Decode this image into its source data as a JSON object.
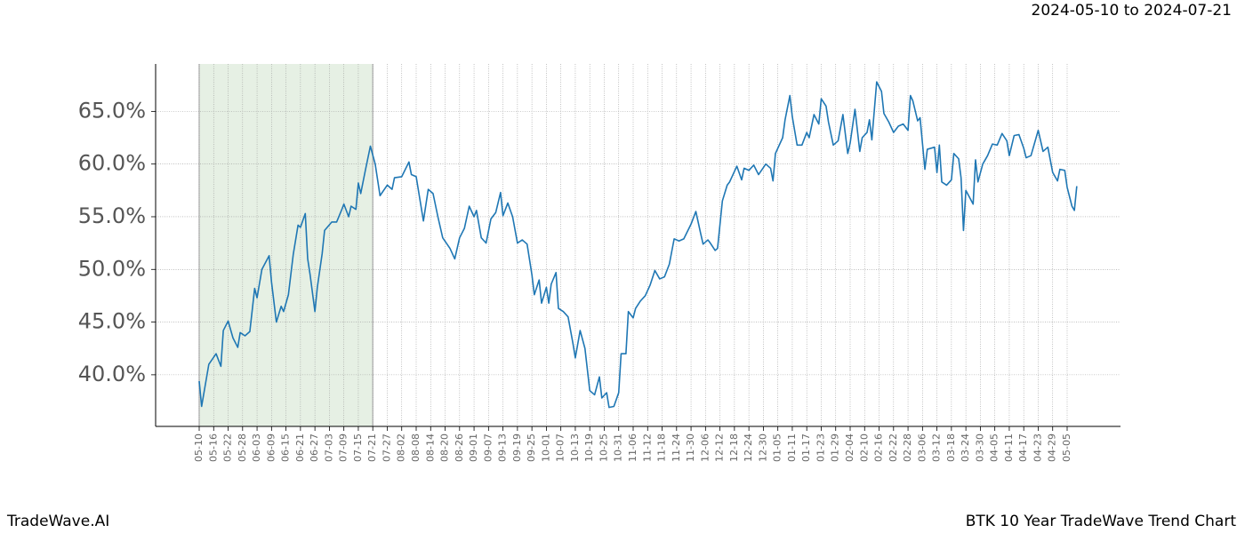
{
  "chart_data": {
    "type": "line",
    "header_text": "2024-05-10 to 2024-07-21",
    "footer_left": "TradeWave.AI",
    "footer_right": "BTK 10 Year TradeWave Trend Chart",
    "color": "#1f77b4",
    "grid": true,
    "shade": {
      "from": "05-10",
      "to": "07-21",
      "color": "#e6f0e4"
    },
    "ylim": [
      35.1,
      69.5
    ],
    "yticks": [
      {
        "value": 40,
        "label": "40.0%"
      },
      {
        "value": 45,
        "label": "45.0%"
      },
      {
        "value": 50,
        "label": "50.0%"
      },
      {
        "value": 55,
        "label": "55.0%"
      },
      {
        "value": 60,
        "label": "60.0%"
      },
      {
        "value": 65,
        "label": "65.0%"
      }
    ],
    "xticks": [
      "05-10",
      "05-16",
      "05-22",
      "05-28",
      "06-03",
      "06-09",
      "06-15",
      "06-21",
      "06-27",
      "07-03",
      "07-09",
      "07-15",
      "07-21",
      "07-27",
      "08-02",
      "08-08",
      "08-14",
      "08-20",
      "08-26",
      "09-01",
      "09-07",
      "09-13",
      "09-19",
      "09-25",
      "10-01",
      "10-07",
      "10-13",
      "10-19",
      "10-25",
      "10-31",
      "11-06",
      "11-12",
      "11-18",
      "11-24",
      "11-30",
      "12-06",
      "12-12",
      "12-18",
      "12-24",
      "12-30",
      "01-05",
      "01-11",
      "01-17",
      "01-23",
      "01-29",
      "02-04",
      "02-10",
      "02-16",
      "02-22",
      "02-28",
      "03-06",
      "03-12",
      "03-18",
      "03-24",
      "03-30",
      "04-05",
      "04-11",
      "04-17",
      "04-23",
      "04-29",
      "05-05"
    ],
    "x": [
      "05-10",
      "05-11",
      "05-14",
      "05-17",
      "05-19",
      "05-20",
      "05-22",
      "05-24",
      "05-26",
      "05-27",
      "05-29",
      "05-31",
      "06-02",
      "06-03",
      "06-05",
      "06-08",
      "06-09",
      "06-11",
      "06-13",
      "06-14",
      "06-16",
      "06-18",
      "06-20",
      "06-21",
      "06-23",
      "06-24",
      "06-25",
      "06-27",
      "06-28",
      "06-30",
      "07-01",
      "07-04",
      "07-06",
      "07-08",
      "07-09",
      "07-11",
      "07-12",
      "07-14",
      "07-15",
      "07-16",
      "07-18",
      "07-20",
      "07-22",
      "07-24",
      "07-27",
      "07-29",
      "07-30",
      "08-02",
      "08-05",
      "08-06",
      "08-08",
      "08-11",
      "08-13",
      "08-15",
      "08-17",
      "08-19",
      "08-22",
      "08-24",
      "08-26",
      "08-28",
      "08-30",
      "09-01",
      "09-02",
      "09-04",
      "09-06",
      "09-08",
      "09-10",
      "09-12",
      "09-13",
      "09-15",
      "09-17",
      "09-19",
      "09-21",
      "09-23",
      "09-25",
      "09-26",
      "09-28",
      "09-29",
      "10-01",
      "10-02",
      "10-03",
      "10-05",
      "10-06",
      "10-08",
      "10-10",
      "10-12",
      "10-13",
      "10-15",
      "10-17",
      "10-19",
      "10-21",
      "10-23",
      "10-24",
      "10-26",
      "10-27",
      "10-29",
      "10-31",
      "11-01",
      "11-03",
      "11-04",
      "11-06",
      "11-07",
      "11-09",
      "11-11",
      "11-13",
      "11-15",
      "11-17",
      "11-19",
      "11-21",
      "11-23",
      "11-25",
      "11-27",
      "11-30",
      "12-02",
      "12-04",
      "12-05",
      "12-07",
      "12-08",
      "12-10",
      "12-11",
      "12-13",
      "12-15",
      "12-16",
      "12-19",
      "12-21",
      "12-22",
      "12-24",
      "12-26",
      "12-28",
      "12-31",
      "01-02",
      "01-03",
      "01-04",
      "01-07",
      "01-08",
      "01-10",
      "01-11",
      "01-13",
      "01-15",
      "01-17",
      "01-18",
      "01-20",
      "01-22",
      "01-23",
      "01-25",
      "01-26",
      "01-28",
      "01-30",
      "02-01",
      "02-03",
      "02-04",
      "02-06",
      "02-08",
      "02-09",
      "02-11",
      "02-12",
      "02-13",
      "02-15",
      "02-17",
      "02-18",
      "02-20",
      "02-22",
      "02-24",
      "02-26",
      "02-28",
      "03-01",
      "03-02",
      "03-04",
      "03-05",
      "03-07",
      "03-08",
      "03-11",
      "03-12",
      "03-13",
      "03-14",
      "03-16",
      "03-18",
      "03-19",
      "03-21",
      "03-22",
      "03-23",
      "03-24",
      "03-27",
      "03-28",
      "03-29",
      "03-31",
      "04-02",
      "04-04",
      "04-06",
      "04-08",
      "04-10",
      "04-11",
      "04-13",
      "04-15",
      "04-17",
      "04-18",
      "04-20",
      "04-23",
      "04-25",
      "04-27",
      "04-29",
      "05-01",
      "05-02",
      "05-04",
      "05-05",
      "05-07",
      "05-08",
      "05-09"
    ],
    "values": [
      39.4,
      37.0,
      41.0,
      42.0,
      40.8,
      44.2,
      45.1,
      43.5,
      42.6,
      44.0,
      43.7,
      44.1,
      48.2,
      47.3,
      50.0,
      51.3,
      48.8,
      45.0,
      46.5,
      46.0,
      47.6,
      51.4,
      54.2,
      54.0,
      55.3,
      51.0,
      49.5,
      46.0,
      48.3,
      51.5,
      53.7,
      54.5,
      54.5,
      55.6,
      56.2,
      55.0,
      56.0,
      55.7,
      58.2,
      57.2,
      59.5,
      61.7,
      60.0,
      57.0,
      58.0,
      57.6,
      58.7,
      58.8,
      60.2,
      59.0,
      58.8,
      54.6,
      57.6,
      57.2,
      55.0,
      53.0,
      52.0,
      51.0,
      53.0,
      53.9,
      56.0,
      55.0,
      55.6,
      53.0,
      52.5,
      54.8,
      55.4,
      57.3,
      55.1,
      56.3,
      55.0,
      52.5,
      52.8,
      52.4,
      49.5,
      47.6,
      49.0,
      46.8,
      48.3,
      46.8,
      48.6,
      49.7,
      46.3,
      46.0,
      45.5,
      43.0,
      41.6,
      44.2,
      42.5,
      38.5,
      38.1,
      39.8,
      37.8,
      38.3,
      36.9,
      37.0,
      38.3,
      42.0,
      42.0,
      46.0,
      45.4,
      46.3,
      47.0,
      47.5,
      48.5,
      49.9,
      49.1,
      49.3,
      50.5,
      52.9,
      52.7,
      52.9,
      54.3,
      55.5,
      53.4,
      52.4,
      52.8,
      52.5,
      51.8,
      52.0,
      56.5,
      58.0,
      58.3,
      59.8,
      58.5,
      59.6,
      59.4,
      59.9,
      59.0,
      60.0,
      59.6,
      58.4,
      61.0,
      62.5,
      64.2,
      66.5,
      64.5,
      61.8,
      61.8,
      63.0,
      62.5,
      64.7,
      63.8,
      66.2,
      65.5,
      64.0,
      61.8,
      62.2,
      64.7,
      61.0,
      62.0,
      65.2,
      61.2,
      62.5,
      63.0,
      64.2,
      62.3,
      67.8,
      66.9,
      64.8,
      64.0,
      63.0,
      63.6,
      63.8,
      63.2,
      66.5,
      66.0,
      64.1,
      64.4,
      59.5,
      61.4,
      61.6,
      59.2,
      61.8,
      58.3,
      58.0,
      58.5,
      61.0,
      60.5,
      58.7,
      53.7,
      57.5,
      56.2,
      60.4,
      58.3,
      60.0,
      60.8,
      61.9,
      61.8,
      62.9,
      62.2,
      60.8,
      62.7,
      62.8,
      61.5,
      60.6,
      60.8,
      63.2,
      61.2,
      61.6,
      59.2,
      58.4,
      59.5,
      59.4,
      57.8,
      56.0,
      55.6,
      57.9
    ]
  }
}
